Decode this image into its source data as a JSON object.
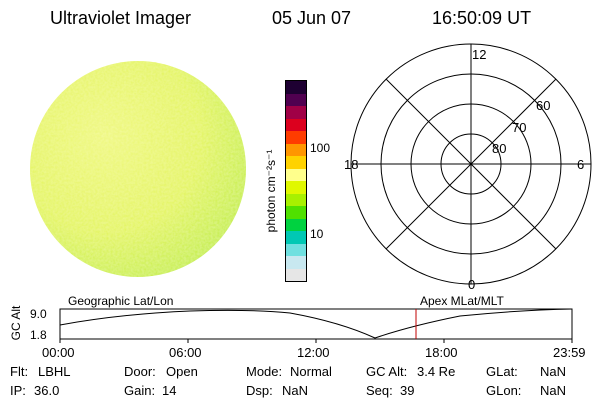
{
  "header": {
    "instrument": "Ultraviolet Imager",
    "date": "05 Jun 07",
    "time": "16:50:09 UT"
  },
  "colorbar": {
    "unit_label": "photon cm⁻²s⁻¹",
    "tick_100": "100",
    "tick_10": "10",
    "colors": [
      "#e6e6e6",
      "#c8e8f0",
      "#6fe0e0",
      "#00c8b4",
      "#00d240",
      "#50e000",
      "#a8f000",
      "#e0f800",
      "#ffff8c",
      "#ffd200",
      "#ff9600",
      "#ff3c00",
      "#dc001e",
      "#a00046",
      "#500050",
      "#1e0032"
    ]
  },
  "polar_plot": {
    "lat_labels": [
      "80",
      "70",
      "60"
    ],
    "mlt_labels": {
      "top": "12",
      "bottom": "0",
      "left": "18",
      "right": "6"
    }
  },
  "altitude_plot": {
    "left_title": "Geographic Lat/Lon",
    "right_title": "Apex MLat/MLT",
    "ylabel": "GC Alt",
    "ytick_top": "9.0",
    "ytick_bottom": "1.8",
    "time_ticks": [
      "00:00",
      "06:00",
      "12:00",
      "18:00",
      "23:59"
    ],
    "marker_color": "#c00000"
  },
  "status": {
    "flt_label": "Flt:",
    "flt_value": "LBHL",
    "ip_label": "IP:",
    "ip_value": "36.0",
    "door_label": "Door:",
    "door_value": "Open",
    "gain_label": "Gain:",
    "gain_value": "14",
    "mode_label": "Mode:",
    "mode_value": "Normal",
    "dsp_label": "Dsp:",
    "dsp_value": "NaN",
    "gcalt_label": "GC Alt:",
    "gcalt_value": "3.4 Re",
    "seq_label": "Seq:",
    "seq_value": "39",
    "glat_label": "GLat:",
    "glat_value": "NaN",
    "glon_label": "GLon:",
    "glon_value": "NaN"
  }
}
